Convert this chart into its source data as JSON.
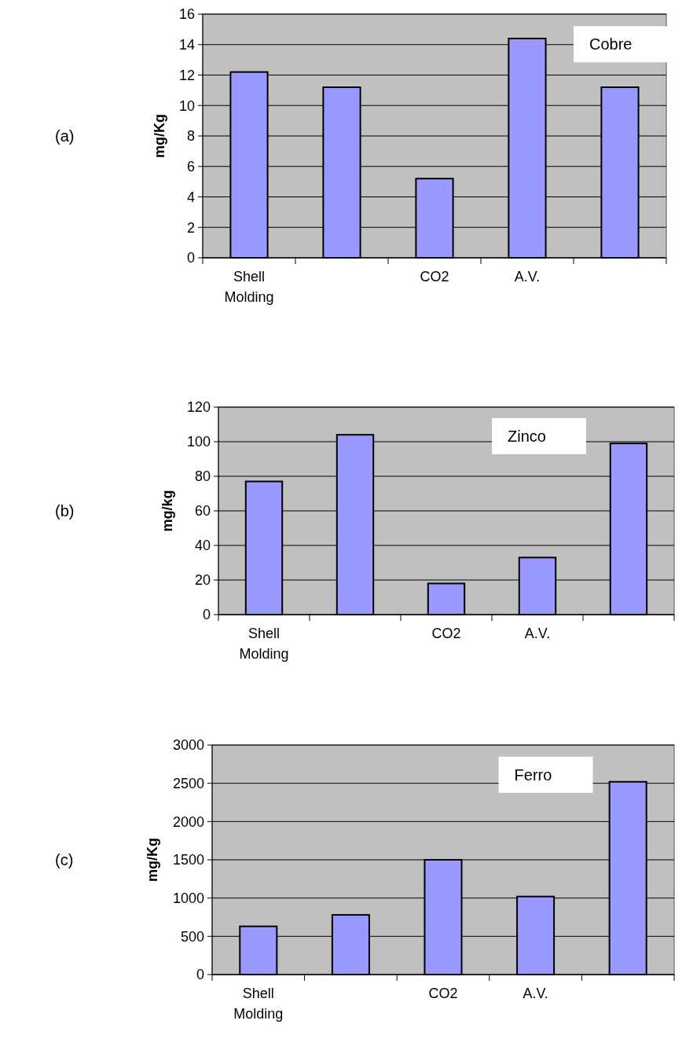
{
  "chart_data": [
    {
      "type": "bar",
      "title": "Cobre",
      "ylabel": "mg/Kg",
      "annotations": [
        "(a)"
      ],
      "categories": [
        "Shell Molding",
        null,
        "CO2",
        "A.V.",
        null
      ],
      "values": [
        12.2,
        11.2,
        5.2,
        14.4,
        11.2
      ],
      "color": "#9999ff",
      "ylim": [
        0,
        16
      ],
      "yticks": [
        0,
        2,
        4,
        6,
        8,
        10,
        12,
        14,
        16
      ],
      "grid": "y"
    },
    {
      "type": "bar",
      "title": "Zinco",
      "ylabel": "mg/kg",
      "annotations": [
        "(b)"
      ],
      "categories": [
        "Shell Molding",
        null,
        "CO2",
        "A.V.",
        null
      ],
      "values": [
        77,
        104,
        18,
        33,
        99
      ],
      "color": "#9999ff",
      "ylim": [
        0,
        120
      ],
      "yticks": [
        0,
        20,
        40,
        60,
        80,
        100,
        120
      ],
      "grid": "y"
    },
    {
      "type": "bar",
      "title": "Ferro",
      "ylabel": "mg/Kg",
      "annotations": [
        "(c)"
      ],
      "categories": [
        "Shell Molding",
        null,
        "CO2",
        "A.V.",
        null
      ],
      "values": [
        630,
        780,
        1500,
        1020,
        2520
      ],
      "color": "#9999ff",
      "ylim": [
        0,
        3000
      ],
      "yticks": [
        0,
        500,
        1000,
        1500,
        2000,
        2500,
        3000
      ],
      "grid": "y"
    }
  ]
}
